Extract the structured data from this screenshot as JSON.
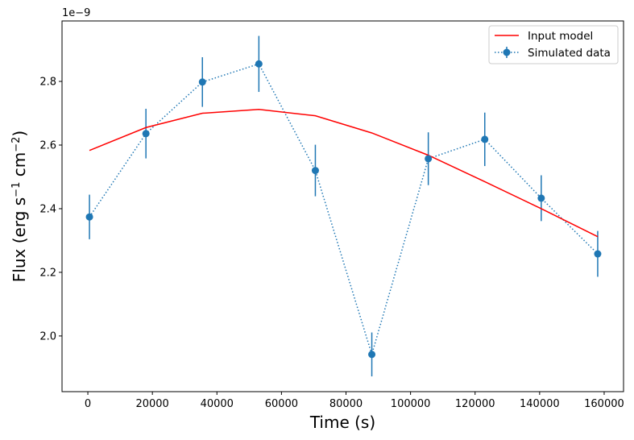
{
  "chart_data": {
    "type": "line",
    "title": "",
    "xlabel": "Time (s)",
    "ylabel_parts": {
      "pre": "Flux (erg s",
      "sup1": "−1",
      "mid": " cm",
      "sup2": "−2",
      "post": ")"
    },
    "y_offset_label": "1e−9",
    "xlim": [
      -8000,
      166000
    ],
    "ylim": [
      1.825,
      2.99
    ],
    "xticks": [
      0,
      20000,
      40000,
      60000,
      80000,
      100000,
      120000,
      140000,
      160000
    ],
    "xtick_labels": [
      "0",
      "20000",
      "40000",
      "60000",
      "80000",
      "100000",
      "120000",
      "140000",
      "160000"
    ],
    "yticks": [
      2.0,
      2.2,
      2.4,
      2.6,
      2.8
    ],
    "ytick_labels": [
      "2.0",
      "2.2",
      "2.4",
      "2.6",
      "2.8"
    ],
    "grid": false,
    "legend_position": "top-right",
    "series": [
      {
        "name": "Input model",
        "style": "solid-line",
        "color": "#ff0000",
        "x": [
          500,
          18000,
          35500,
          53000,
          70500,
          88000,
          105500,
          123000,
          140500,
          158000
        ],
        "y": [
          2.583,
          2.655,
          2.7,
          2.712,
          2.692,
          2.638,
          2.568,
          2.485,
          2.4,
          2.312
        ]
      },
      {
        "name": "Simulated data",
        "style": "dotted-line-errorbar",
        "color": "#1f77b4",
        "x": [
          500,
          18000,
          35500,
          53000,
          70500,
          88000,
          105500,
          123000,
          140500,
          158000
        ],
        "y": [
          2.374,
          2.636,
          2.798,
          2.855,
          2.52,
          1.942,
          2.557,
          2.618,
          2.433,
          2.258
        ],
        "yerr": [
          0.07,
          0.078,
          0.078,
          0.088,
          0.081,
          0.069,
          0.083,
          0.084,
          0.072,
          0.072
        ]
      }
    ]
  }
}
